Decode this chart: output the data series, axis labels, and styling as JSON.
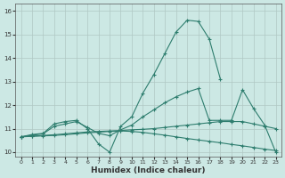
{
  "xlabel": "Humidex (Indice chaleur)",
  "bg_color": "#cce8e4",
  "line_color": "#2e7d6e",
  "grid_color": "#b0c8c4",
  "xlim": [
    -0.5,
    23.5
  ],
  "ylim": [
    9.8,
    16.3
  ],
  "yticks": [
    10,
    11,
    12,
    13,
    14,
    15,
    16
  ],
  "xticks": [
    0,
    1,
    2,
    3,
    4,
    5,
    6,
    7,
    8,
    9,
    10,
    11,
    12,
    13,
    14,
    15,
    16,
    17,
    18,
    19,
    20,
    21,
    22,
    23
  ],
  "series": [
    {
      "x": [
        0,
        1,
        2,
        3,
        4,
        5,
        6,
        7,
        8,
        9,
        10,
        11,
        12,
        13,
        14,
        15,
        16,
        17,
        18,
        19,
        20,
        21,
        22,
        23
      ],
      "y": [
        10.65,
        10.75,
        10.8,
        11.2,
        11.3,
        11.35,
        11.0,
        10.35,
        10.0,
        11.1,
        11.5,
        12.5,
        13.3,
        14.2,
        15.1,
        15.6,
        15.55,
        14.8,
        13.1,
        null,
        null,
        null,
        null,
        null
      ]
    },
    {
      "x": [
        0,
        1,
        2,
        3,
        4,
        5,
        6,
        7,
        8,
        9,
        10,
        11,
        12,
        13,
        14,
        15,
        16,
        17,
        18,
        19,
        20,
        21,
        22,
        23
      ],
      "y": [
        10.65,
        10.72,
        10.78,
        11.1,
        11.2,
        11.3,
        11.05,
        10.8,
        10.7,
        10.95,
        11.15,
        11.5,
        11.8,
        12.1,
        12.35,
        12.55,
        12.7,
        11.35,
        11.35,
        11.35,
        12.65,
        11.85,
        11.15,
        10.0
      ]
    },
    {
      "x": [
        0,
        1,
        2,
        3,
        4,
        5,
        6,
        7,
        8,
        9,
        10,
        11,
        12,
        13,
        14,
        15,
        16,
        17,
        18,
        19,
        20,
        21,
        22,
        23
      ],
      "y": [
        10.65,
        10.68,
        10.71,
        10.74,
        10.78,
        10.82,
        10.86,
        10.88,
        10.9,
        10.92,
        10.95,
        10.97,
        11.0,
        11.05,
        11.1,
        11.15,
        11.2,
        11.25,
        11.3,
        11.3,
        11.3,
        11.2,
        11.1,
        11.0
      ]
    },
    {
      "x": [
        0,
        1,
        2,
        3,
        4,
        5,
        6,
        7,
        8,
        9,
        10,
        11,
        12,
        13,
        14,
        15,
        16,
        17,
        18,
        19,
        20,
        21,
        22,
        23
      ],
      "y": [
        10.65,
        10.67,
        10.69,
        10.71,
        10.74,
        10.78,
        10.82,
        10.85,
        10.88,
        10.9,
        10.88,
        10.84,
        10.78,
        10.72,
        10.65,
        10.58,
        10.52,
        10.46,
        10.4,
        10.33,
        10.27,
        10.2,
        10.13,
        10.07
      ]
    }
  ]
}
